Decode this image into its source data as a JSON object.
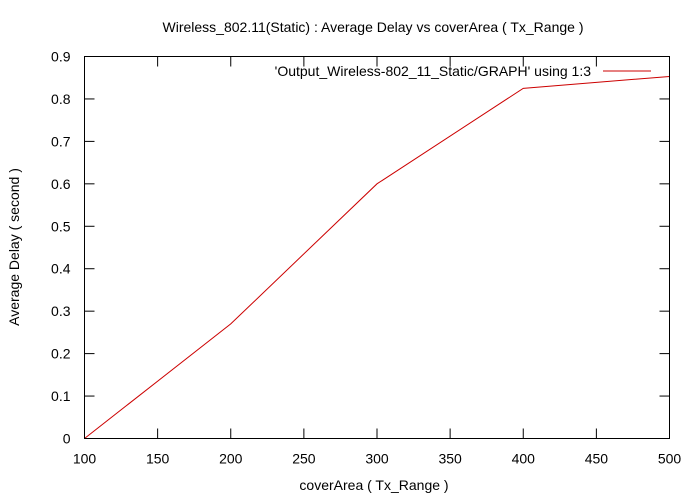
{
  "chart_data": {
    "type": "line",
    "title": "Wireless_802.11(Static) : Average Delay vs coverArea ( Tx_Range )",
    "xlabel": "coverArea ( Tx_Range )",
    "ylabel": "Average Delay ( second )",
    "xlim": [
      100,
      500
    ],
    "ylim": [
      0,
      0.9
    ],
    "xticks": [
      "100",
      "150",
      "200",
      "250",
      "300",
      "350",
      "400",
      "450",
      "500"
    ],
    "yticks": [
      "0",
      "0.1",
      "0.2",
      "0.3",
      "0.4",
      "0.5",
      "0.6",
      "0.7",
      "0.8",
      "0.9"
    ],
    "grid": false,
    "legend_position": "top-right",
    "series": [
      {
        "name": "'Output_Wireless-802_11_Static/GRAPH' using 1:3",
        "color": "#cc0000",
        "x": [
          100,
          200,
          300,
          400,
          500
        ],
        "y": [
          0.0,
          0.27,
          0.6,
          0.825,
          0.853
        ]
      }
    ]
  }
}
